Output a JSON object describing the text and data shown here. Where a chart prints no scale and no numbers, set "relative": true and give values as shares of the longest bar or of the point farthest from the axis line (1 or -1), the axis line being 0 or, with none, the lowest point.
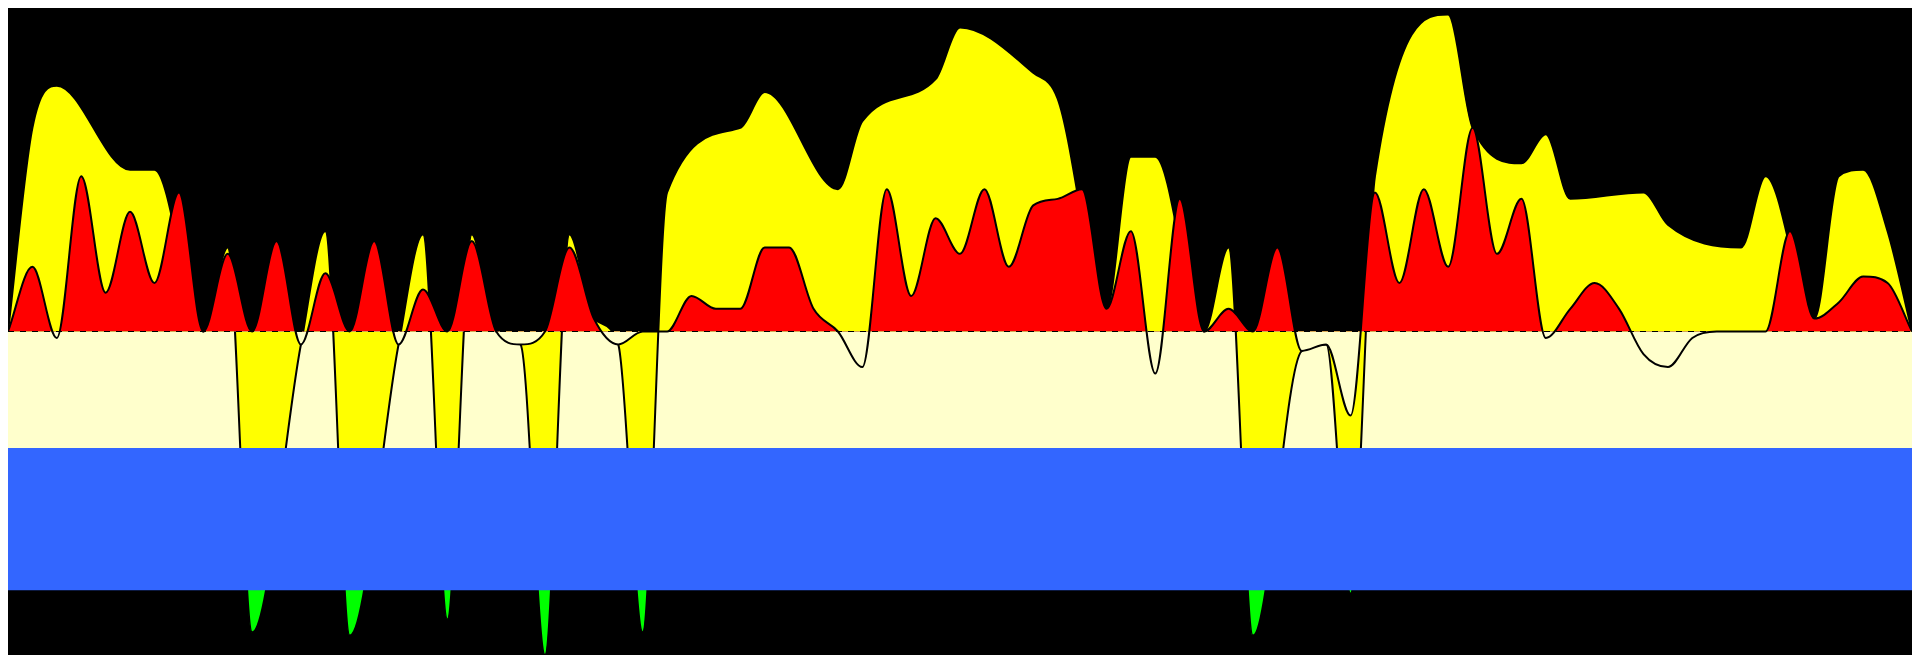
{
  "chart_data": {
    "type": "area",
    "relative": true,
    "categories": [
      null,
      null,
      null,
      null,
      null,
      null,
      null,
      null,
      null,
      null,
      null,
      null,
      null,
      null,
      null,
      null,
      null,
      null,
      null,
      null,
      null,
      null,
      null,
      null,
      null,
      null,
      null,
      null,
      null,
      null,
      null,
      null,
      null,
      null,
      null,
      null,
      null,
      null,
      null,
      null,
      null,
      null,
      null,
      null,
      null,
      null,
      null,
      null,
      null,
      null,
      null,
      null,
      null,
      null,
      null,
      null,
      null,
      null,
      null,
      null,
      null,
      null,
      null,
      null,
      null,
      null,
      null,
      null,
      null,
      null,
      null,
      null,
      null,
      null,
      null,
      null,
      null,
      null,
      null
    ],
    "series": [
      {
        "color": "#ffff00",
        "values": [
          0,
          0.63,
          0.76,
          null,
          null,
          0.5,
          0.5,
          null,
          0,
          0.26,
          -0.93,
          null,
          -0.04,
          0.31,
          -0.94,
          null,
          -0.04,
          0.3,
          -0.89,
          0.3,
          0,
          -0.04,
          -1,
          0.3,
          0.04,
          -0.04,
          -0.93,
          0.43,
          null,
          null,
          0.63,
          0.74,
          null,
          null,
          0.44,
          0.65,
          null,
          null,
          0.78,
          0.94,
          null,
          null,
          0.8,
          0.72,
          null,
          0.07,
          0.54,
          0.54,
          null,
          0,
          0.26,
          -0.94,
          null,
          -0.06,
          -0.04,
          -0.81,
          0.48,
          null,
          null,
          0.98,
          0.63,
          null,
          0.52,
          0.61,
          0.41,
          null,
          null,
          0.43,
          0.33,
          null,
          null,
          0.26,
          0.48,
          null,
          0.04,
          0.48,
          0.5,
          0.31,
          0
        ]
      },
      {
        "color": "#ff0000",
        "values": [
          0,
          0.2,
          -0.02,
          0.48,
          0.12,
          0.37,
          0.15,
          0.43,
          0,
          0.24,
          0,
          0.28,
          -0.04,
          0.18,
          0,
          0.28,
          -0.04,
          0.13,
          0,
          0.28,
          0,
          -0.04,
          0,
          0.26,
          0.04,
          -0.04,
          0,
          0,
          0.11,
          0.07,
          0.07,
          0.26,
          0.26,
          0.07,
          0,
          -0.11,
          0.44,
          0.11,
          0.35,
          0.24,
          0.44,
          0.2,
          0.39,
          0.41,
          0.44,
          0.07,
          0.31,
          -0.13,
          0.41,
          0,
          0.07,
          0,
          0.26,
          -0.06,
          -0.04,
          -0.26,
          0.43,
          0.15,
          0.44,
          0.2,
          0.63,
          0.24,
          0.41,
          -0.02,
          0.07,
          0.15,
          0.07,
          -0.07,
          -0.11,
          -0.02,
          0,
          0,
          0,
          0.31,
          0.04,
          0.09,
          0.17,
          0.15,
          0
        ]
      }
    ],
    "bands": [
      {
        "axis": "y",
        "from": 0,
        "to": -0.36,
        "color": "#ffffcc"
      },
      {
        "axis": "y",
        "from": -0.36,
        "to": -0.8,
        "color": "#3366ff"
      }
    ],
    "legend": false
  }
}
